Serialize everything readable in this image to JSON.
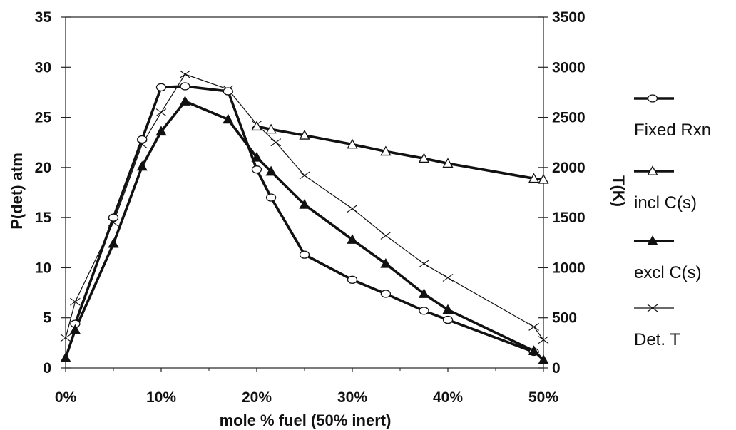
{
  "chart_data": {
    "type": "line",
    "title": "",
    "xlabel": "mole % fuel (50% inert)",
    "ylabel": "P(det) atm",
    "y2label": "T(K)",
    "xlim": [
      0,
      50
    ],
    "ylim": [
      0,
      35
    ],
    "y2lim": [
      0,
      3500
    ],
    "x_tick_labels": [
      "0%",
      "10%",
      "20%",
      "30%",
      "40%",
      "50%"
    ],
    "y_tick_labels": [
      "0",
      "5",
      "10",
      "15",
      "20",
      "25",
      "30",
      "35"
    ],
    "y2_tick_labels": [
      "0",
      "500",
      "1000",
      "1500",
      "2000",
      "2500",
      "3000",
      "3500"
    ],
    "grid": false,
    "legend_position": "right",
    "series": [
      {
        "name": "Fixed Rxn",
        "axis": "left",
        "marker": "circle-open",
        "x": [
          1,
          5,
          8,
          10,
          12.5,
          17,
          20,
          21.5,
          25,
          30,
          33.5,
          37.5,
          40,
          49
        ],
        "y": [
          4.4,
          15.0,
          22.8,
          28.0,
          28.1,
          27.6,
          19.8,
          17.0,
          11.3,
          8.8,
          7.4,
          5.7,
          4.8,
          1.6
        ]
      },
      {
        "name": "incl C(s)",
        "axis": "left",
        "marker": "triangle-open",
        "x": [
          20,
          21.5,
          25,
          30,
          33.5,
          37.5,
          40,
          49,
          50
        ],
        "y": [
          24.1,
          23.8,
          23.2,
          22.3,
          21.6,
          20.9,
          20.4,
          18.9,
          18.8
        ]
      },
      {
        "name": "excl C(s)",
        "axis": "left",
        "marker": "triangle-filled",
        "x": [
          0,
          1,
          5,
          8,
          10,
          12.5,
          17,
          20,
          21.5,
          25,
          30,
          33.5,
          37.5,
          40,
          49,
          50
        ],
        "y": [
          1.0,
          3.8,
          12.4,
          20.1,
          23.6,
          26.6,
          24.8,
          21.0,
          19.6,
          16.3,
          12.8,
          10.4,
          7.4,
          5.8,
          1.7,
          0.8
        ]
      },
      {
        "name": "Det. T",
        "axis": "right",
        "marker": "x",
        "x": [
          0,
          1,
          5,
          8,
          10,
          12.5,
          17,
          20,
          22,
          25,
          30,
          33.5,
          37.5,
          40,
          49,
          50
        ],
        "y": [
          300,
          660,
          1450,
          2230,
          2550,
          2930,
          2780,
          2430,
          2250,
          1920,
          1590,
          1320,
          1040,
          900,
          410,
          280
        ]
      }
    ]
  }
}
